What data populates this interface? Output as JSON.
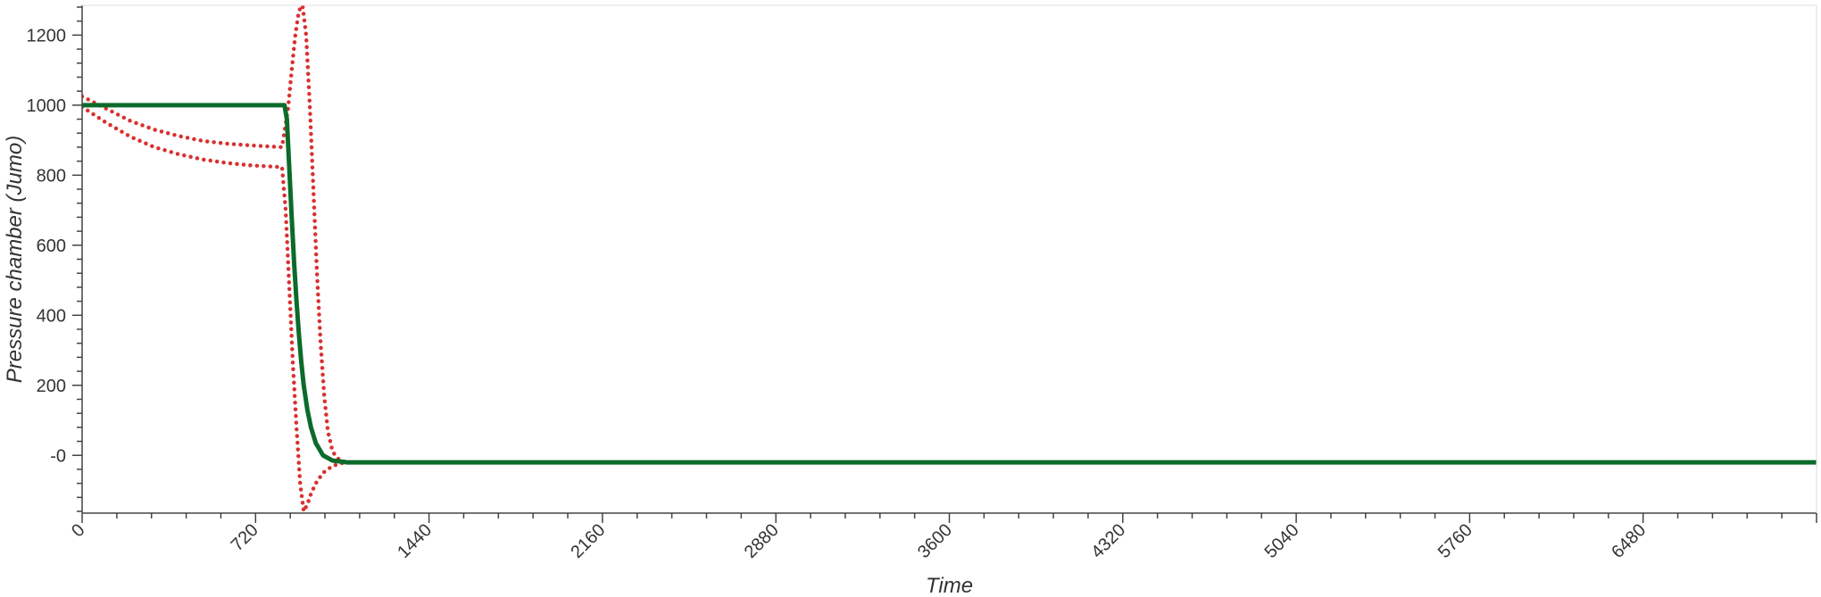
{
  "chart_data": {
    "type": "line",
    "title": "",
    "xlabel": "Time",
    "ylabel": "Pressure chamber (Jumo)",
    "xlim": [
      0,
      7200
    ],
    "ylim": [
      -165,
      1285
    ],
    "x_ticks": [
      "0",
      "720",
      "1440",
      "2160",
      "2880",
      "3600",
      "4320",
      "5040",
      "5760",
      "6480"
    ],
    "y_ticks": [
      "-0",
      "200",
      "400",
      "600",
      "800",
      "1000",
      "1200"
    ],
    "grid": false,
    "legend": "none",
    "series": [
      {
        "style": "solid",
        "color": "#0b6b2a",
        "points": [
          [
            0,
            1000
          ],
          [
            840,
            1000
          ],
          [
            850,
            960
          ],
          [
            860,
            820
          ],
          [
            870,
            680
          ],
          [
            880,
            550
          ],
          [
            890,
            440
          ],
          [
            900,
            345
          ],
          [
            910,
            265
          ],
          [
            920,
            200
          ],
          [
            935,
            130
          ],
          [
            950,
            80
          ],
          [
            970,
            35
          ],
          [
            1000,
            0
          ],
          [
            1040,
            -15
          ],
          [
            1100,
            -20
          ],
          [
            7200,
            -20
          ]
        ]
      },
      {
        "style": "dotted",
        "color": "#d93030",
        "points": [
          [
            0,
            1025
          ],
          [
            100,
            990
          ],
          [
            200,
            955
          ],
          [
            300,
            930
          ],
          [
            400,
            912
          ],
          [
            500,
            898
          ],
          [
            600,
            890
          ],
          [
            700,
            885
          ],
          [
            780,
            882
          ],
          [
            830,
            880
          ],
          [
            855,
            990
          ],
          [
            870,
            1100
          ],
          [
            885,
            1200
          ],
          [
            900,
            1270
          ],
          [
            915,
            1285
          ],
          [
            930,
            1200
          ],
          [
            945,
            1000
          ],
          [
            960,
            760
          ],
          [
            975,
            520
          ],
          [
            990,
            320
          ],
          [
            1005,
            170
          ],
          [
            1020,
            70
          ],
          [
            1040,
            10
          ],
          [
            1070,
            -15
          ],
          [
            1100,
            -20
          ],
          [
            7200,
            -20
          ]
        ]
      },
      {
        "style": "dotted",
        "color": "#d93030",
        "points": [
          [
            0,
            995
          ],
          [
            100,
            950
          ],
          [
            200,
            910
          ],
          [
            300,
            880
          ],
          [
            400,
            860
          ],
          [
            500,
            845
          ],
          [
            600,
            835
          ],
          [
            700,
            828
          ],
          [
            780,
            825
          ],
          [
            830,
            823
          ],
          [
            845,
            700
          ],
          [
            860,
            480
          ],
          [
            875,
            260
          ],
          [
            890,
            80
          ],
          [
            905,
            -80
          ],
          [
            920,
            -160
          ],
          [
            935,
            -140
          ],
          [
            950,
            -110
          ],
          [
            970,
            -80
          ],
          [
            1000,
            -50
          ],
          [
            1040,
            -30
          ],
          [
            1080,
            -22
          ],
          [
            1120,
            -20
          ],
          [
            7200,
            -20
          ]
        ]
      }
    ]
  }
}
